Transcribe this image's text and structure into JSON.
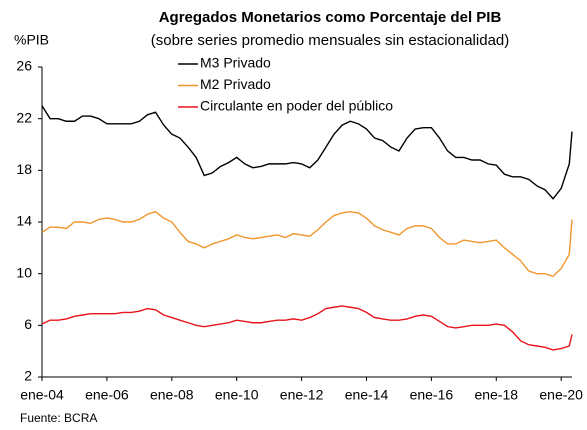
{
  "chart_data": {
    "type": "line",
    "title": "Agregados Monetarios como Porcentaje del PIB",
    "subtitle": "(sobre series promedio mensuales sin estacionalidad)",
    "y_label": "%PIB",
    "source": "Fuente: BCRA",
    "x": [
      "2004-01",
      "2004-04",
      "2004-07",
      "2004-10",
      "2005-01",
      "2005-04",
      "2005-07",
      "2005-10",
      "2006-01",
      "2006-04",
      "2006-07",
      "2006-10",
      "2007-01",
      "2007-04",
      "2007-07",
      "2007-10",
      "2008-01",
      "2008-04",
      "2008-07",
      "2008-10",
      "2009-01",
      "2009-04",
      "2009-07",
      "2009-10",
      "2010-01",
      "2010-04",
      "2010-07",
      "2010-10",
      "2011-01",
      "2011-04",
      "2011-07",
      "2011-10",
      "2012-01",
      "2012-04",
      "2012-07",
      "2012-10",
      "2013-01",
      "2013-04",
      "2013-07",
      "2013-10",
      "2014-01",
      "2014-04",
      "2014-07",
      "2014-10",
      "2015-01",
      "2015-04",
      "2015-07",
      "2015-10",
      "2016-01",
      "2016-04",
      "2016-07",
      "2016-10",
      "2017-01",
      "2017-04",
      "2017-07",
      "2017-10",
      "2018-01",
      "2018-04",
      "2018-07",
      "2018-10",
      "2019-01",
      "2019-04",
      "2019-07",
      "2019-10",
      "2020-01",
      "2020-04",
      "2020-05"
    ],
    "series": [
      {
        "name": "M3 Privado",
        "color": "#000000",
        "values": [
          23.0,
          22.0,
          22.0,
          21.8,
          21.8,
          22.2,
          22.2,
          22.0,
          21.6,
          21.6,
          21.6,
          21.6,
          21.8,
          22.3,
          22.5,
          21.5,
          20.8,
          20.5,
          19.8,
          19.0,
          17.6,
          17.8,
          18.3,
          18.6,
          19.0,
          18.5,
          18.2,
          18.3,
          18.5,
          18.5,
          18.5,
          18.6,
          18.5,
          18.2,
          18.8,
          19.8,
          20.8,
          21.5,
          21.8,
          21.6,
          21.2,
          20.5,
          20.3,
          19.8,
          19.5,
          20.5,
          21.2,
          21.3,
          21.3,
          20.5,
          19.5,
          19.0,
          19.0,
          18.8,
          18.8,
          18.5,
          18.4,
          17.7,
          17.5,
          17.5,
          17.3,
          16.8,
          16.5,
          15.8,
          16.6,
          18.5,
          21.0
        ]
      },
      {
        "name": "M2 Privado",
        "color": "#f0962c",
        "values": [
          13.2,
          13.6,
          13.6,
          13.5,
          14.0,
          14.0,
          13.9,
          14.2,
          14.3,
          14.2,
          14.0,
          14.0,
          14.2,
          14.6,
          14.8,
          14.3,
          14.0,
          13.2,
          12.5,
          12.3,
          12.0,
          12.3,
          12.5,
          12.7,
          13.0,
          12.8,
          12.7,
          12.8,
          12.9,
          13.0,
          12.8,
          13.1,
          13.0,
          12.9,
          13.4,
          14.0,
          14.5,
          14.7,
          14.8,
          14.7,
          14.3,
          13.7,
          13.4,
          13.2,
          13.0,
          13.5,
          13.7,
          13.7,
          13.5,
          12.8,
          12.3,
          12.3,
          12.6,
          12.5,
          12.4,
          12.5,
          12.6,
          12.0,
          11.5,
          11.0,
          10.2,
          10.0,
          10.0,
          9.8,
          10.4,
          11.5,
          14.2
        ]
      },
      {
        "name": "Circulante en poder del público",
        "color": "#e8141b",
        "values": [
          6.1,
          6.4,
          6.4,
          6.5,
          6.7,
          6.8,
          6.9,
          6.9,
          6.9,
          6.9,
          7.0,
          7.0,
          7.1,
          7.3,
          7.2,
          6.8,
          6.6,
          6.4,
          6.2,
          6.0,
          5.9,
          6.0,
          6.1,
          6.2,
          6.4,
          6.3,
          6.2,
          6.2,
          6.3,
          6.4,
          6.4,
          6.5,
          6.4,
          6.6,
          6.9,
          7.3,
          7.4,
          7.5,
          7.4,
          7.3,
          7.0,
          6.6,
          6.5,
          6.4,
          6.4,
          6.5,
          6.7,
          6.8,
          6.7,
          6.3,
          5.9,
          5.8,
          5.9,
          6.0,
          6.0,
          6.0,
          6.1,
          6.0,
          5.5,
          4.8,
          4.5,
          4.4,
          4.3,
          4.1,
          4.2,
          4.4,
          5.3
        ]
      }
    ],
    "xlim": [
      "2004-01",
      "2020-05"
    ],
    "xticks": [
      {
        "value": "2004-01",
        "label": "ene-04"
      },
      {
        "value": "2006-01",
        "label": "ene-06"
      },
      {
        "value": "2008-01",
        "label": "ene-08"
      },
      {
        "value": "2010-01",
        "label": "ene-10"
      },
      {
        "value": "2012-01",
        "label": "ene-12"
      },
      {
        "value": "2014-01",
        "label": "ene-14"
      },
      {
        "value": "2016-01",
        "label": "ene-16"
      },
      {
        "value": "2018-01",
        "label": "ene-18"
      },
      {
        "value": "2020-01",
        "label": "ene-20"
      }
    ],
    "ylim": [
      2,
      26
    ],
    "yticks": [
      2,
      6,
      10,
      14,
      18,
      22,
      26
    ]
  }
}
